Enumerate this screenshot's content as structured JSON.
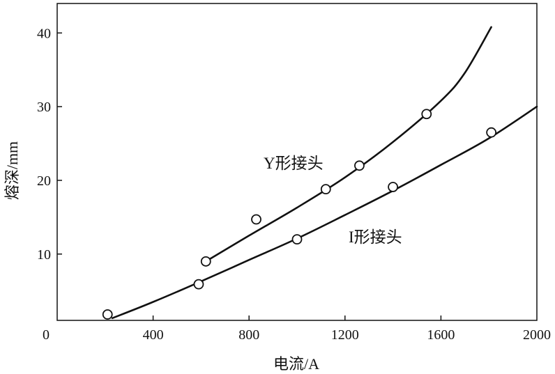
{
  "chart_data": {
    "type": "scatter",
    "title": "",
    "xlabel": "电流/A",
    "ylabel": "熔深/mm",
    "xlim": [
      0,
      2000
    ],
    "ylim": [
      1,
      44
    ],
    "x_ticks": [
      0,
      400,
      800,
      1200,
      1600,
      2000
    ],
    "x_tick_labels": [
      "0",
      "400",
      "800",
      "1200",
      "1600",
      "2000"
    ],
    "y_ticks": [
      10,
      20,
      30,
      40
    ],
    "y_tick_labels": [
      "10",
      "20",
      "30",
      "40"
    ],
    "grid": false,
    "legend": "none",
    "series": [
      {
        "name": "Y形接头",
        "points": [
          {
            "x": 620,
            "y": 9.0
          },
          {
            "x": 830,
            "y": 14.7
          },
          {
            "x": 1120,
            "y": 18.8
          },
          {
            "x": 1260,
            "y": 22.0
          },
          {
            "x": 1540,
            "y": 29.0
          }
        ],
        "fit": [
          [
            620,
            9.0
          ],
          [
            800,
            12.5
          ],
          [
            1000,
            16.3
          ],
          [
            1200,
            20.4
          ],
          [
            1400,
            25.2
          ],
          [
            1600,
            30.8
          ],
          [
            1700,
            34.6
          ],
          [
            1810,
            40.8
          ]
        ]
      },
      {
        "name": "I形接头",
        "points": [
          {
            "x": 210,
            "y": 1.8
          },
          {
            "x": 590,
            "y": 5.9
          },
          {
            "x": 1000,
            "y": 12.0
          },
          {
            "x": 1400,
            "y": 19.1
          },
          {
            "x": 1810,
            "y": 26.5
          }
        ],
        "fit": [
          [
            230,
            1.3
          ],
          [
            400,
            3.5
          ],
          [
            600,
            6.3
          ],
          [
            800,
            9.2
          ],
          [
            1000,
            12.1
          ],
          [
            1200,
            15.3
          ],
          [
            1400,
            18.6
          ],
          [
            1600,
            22.1
          ],
          [
            1800,
            25.7
          ],
          [
            2000,
            30.0
          ]
        ]
      }
    ],
    "colors": {
      "line": "#111111",
      "marker_fill": "#ffffff"
    }
  }
}
